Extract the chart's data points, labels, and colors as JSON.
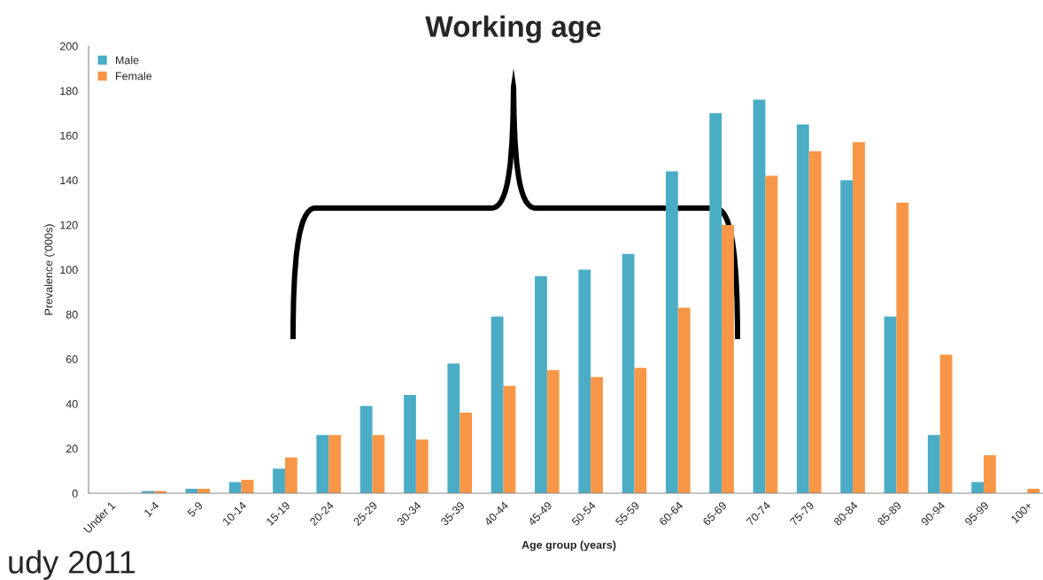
{
  "chart_data": {
    "type": "bar",
    "categories": [
      "Under 1",
      "1-4",
      "5-9",
      "10-14",
      "15-19",
      "20-24",
      "25-29",
      "30-34",
      "35-39",
      "40-44",
      "45-49",
      "50-54",
      "55-59",
      "60-64",
      "65-69",
      "70-74",
      "75-79",
      "80-84",
      "85-89",
      "90-94",
      "95-99",
      "100+"
    ],
    "series": [
      {
        "name": "Male",
        "color": "#4bacc6",
        "values": [
          0,
          1,
          2,
          5,
          11,
          26,
          39,
          44,
          58,
          79,
          97,
          100,
          107,
          144,
          170,
          176,
          165,
          140,
          79,
          26,
          5,
          0
        ]
      },
      {
        "name": "Female",
        "color": "#f79646",
        "values": [
          0,
          1,
          2,
          6,
          16,
          26,
          26,
          24,
          36,
          48,
          55,
          52,
          56,
          83,
          120,
          142,
          153,
          157,
          130,
          62,
          17,
          2
        ]
      }
    ],
    "xlabel": "Age group (years)",
    "ylabel": "Prevalence ('000s)",
    "ylim": [
      0,
      200
    ],
    "yticks": [
      0,
      20,
      40,
      60,
      80,
      100,
      120,
      140,
      160,
      180,
      200
    ],
    "legend": "top left",
    "grid": false,
    "annotations": [
      "Working age",
      "udy 2011"
    ]
  }
}
